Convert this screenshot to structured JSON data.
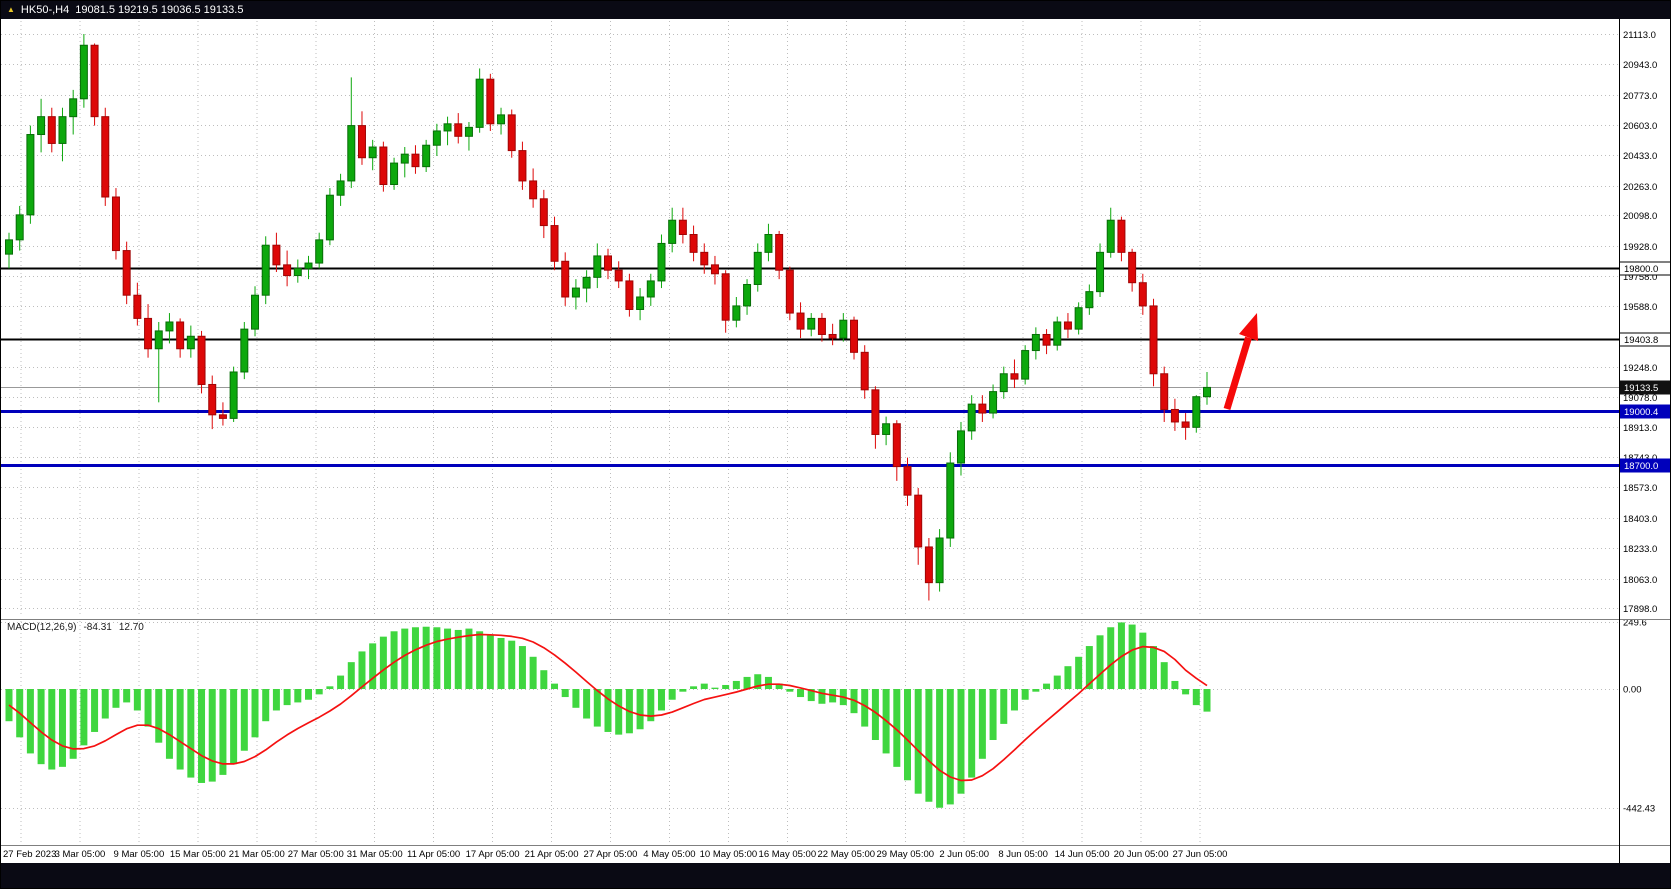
{
  "title_bar": {
    "symbol_period": "HK50-,H4",
    "ohlc": "19081.5 19219.5 19036.5 19133.5"
  },
  "colors": {
    "bull": "#0da80d",
    "bull_stroke": "#076d07",
    "bear": "#dd0808",
    "bear_stroke": "#a00505",
    "macd_bar": "#3fd63f",
    "macd_signal": "#f51111",
    "grid": "#bdbdbd",
    "hline_black": "#000000",
    "hline_blue": "#0000bb",
    "current_price_line": "#999999",
    "arrow": "#f50a0a",
    "titlebar_bg": "#0a0a14",
    "bottom_strip_bg": "#0a0a14",
    "axis_text": "#000000"
  },
  "chart_data": {
    "type": "candlestick",
    "symbol": "HK50-",
    "timeframe": "H4",
    "title": "HK50-,H4 19081.5 19219.5 19036.5 19133.5",
    "price_axis": {
      "min": 17898,
      "max": 21113,
      "ticks": [
        "21113.0",
        "20943.0",
        "20773.0",
        "20603.0",
        "20433.0",
        "20263.0",
        "20098.0",
        "19928.0",
        "19758.0",
        "19588.0",
        "19248.0",
        "19078.0",
        "18913.0",
        "18743.0",
        "18573.0",
        "18403.0",
        "18233.0",
        "18063.0",
        "17898.0"
      ]
    },
    "x_labels": [
      "27 Feb 2023",
      "3 Mar 05:00",
      "9 Mar 05:00",
      "15 Mar 05:00",
      "21 Mar 05:00",
      "27 Mar 05:00",
      "31 Mar 05:00",
      "11 Apr 05:00",
      "17 Apr 05:00",
      "21 Apr 05:00",
      "27 Apr 05:00",
      "4 May 05:00",
      "10 May 05:00",
      "16 May 05:00",
      "22 May 05:00",
      "29 May 05:00",
      "2 Jun 05:00",
      "8 Jun 05:00",
      "14 Jun 05:00",
      "20 Jun 05:00",
      "27 Jun 05:00"
    ],
    "hlines": [
      {
        "value": 19800.0,
        "label": "19800.0",
        "color": "#000000",
        "thickness": 2,
        "badge_bg": "#ffffff",
        "badge_fg": "#000000",
        "badge_border": "#000000"
      },
      {
        "value": 19403.8,
        "label": "19403.8",
        "color": "#000000",
        "thickness": 2,
        "badge_bg": "#ffffff",
        "badge_fg": "#000000",
        "badge_border": "#000000"
      },
      {
        "value": 19000.4,
        "label": "19000.4",
        "color": "#0000bb",
        "thickness": 3,
        "badge_bg": "#0000bb",
        "badge_fg": "#ffffff",
        "badge_border": "#0000bb"
      },
      {
        "value": 18700.0,
        "label": "18700.0",
        "color": "#0000bb",
        "thickness": 3,
        "badge_bg": "#0000bb",
        "badge_fg": "#ffffff",
        "badge_border": "#0000bb"
      }
    ],
    "current_price": {
      "value": 19133.5,
      "label": "19133.5",
      "badge_bg": "#111111",
      "badge_fg": "#ffffff"
    },
    "candles": [
      [
        19880,
        20000,
        19800,
        19960
      ],
      [
        19960,
        20150,
        19900,
        20100
      ],
      [
        20100,
        20600,
        20050,
        20550
      ],
      [
        20550,
        20750,
        20450,
        20650
      ],
      [
        20650,
        20700,
        20450,
        20500
      ],
      [
        20500,
        20700,
        20400,
        20650
      ],
      [
        20650,
        20800,
        20550,
        20750
      ],
      [
        20750,
        21113,
        20700,
        21050
      ],
      [
        21050,
        21060,
        20600,
        20650
      ],
      [
        20650,
        20700,
        20150,
        20200
      ],
      [
        20200,
        20250,
        19850,
        19900
      ],
      [
        19900,
        19950,
        19600,
        19650
      ],
      [
        19650,
        19720,
        19480,
        19520
      ],
      [
        19520,
        19600,
        19300,
        19350
      ],
      [
        19350,
        19500,
        19050,
        19450
      ],
      [
        19450,
        19550,
        19380,
        19500
      ],
      [
        19500,
        19520,
        19300,
        19350
      ],
      [
        19350,
        19480,
        19300,
        19420
      ],
      [
        19420,
        19450,
        19100,
        19150
      ],
      [
        19150,
        19200,
        18900,
        18980
      ],
      [
        18980,
        19050,
        18920,
        18960
      ],
      [
        18960,
        19250,
        18940,
        19220
      ],
      [
        19220,
        19500,
        19180,
        19460
      ],
      [
        19460,
        19700,
        19420,
        19650
      ],
      [
        19650,
        19980,
        19600,
        19930
      ],
      [
        19930,
        20000,
        19780,
        19820
      ],
      [
        19820,
        19900,
        19700,
        19760
      ],
      [
        19760,
        19850,
        19720,
        19800
      ],
      [
        19800,
        19870,
        19740,
        19830
      ],
      [
        19830,
        20000,
        19800,
        19960
      ],
      [
        19960,
        20250,
        19930,
        20210
      ],
      [
        20210,
        20330,
        20150,
        20290
      ],
      [
        20290,
        20870,
        20250,
        20600
      ],
      [
        20600,
        20680,
        20380,
        20420
      ],
      [
        20420,
        20520,
        20350,
        20480
      ],
      [
        20480,
        20510,
        20230,
        20270
      ],
      [
        20270,
        20420,
        20240,
        20390
      ],
      [
        20390,
        20480,
        20310,
        20440
      ],
      [
        20440,
        20490,
        20330,
        20370
      ],
      [
        20370,
        20520,
        20340,
        20490
      ],
      [
        20490,
        20610,
        20430,
        20570
      ],
      [
        20570,
        20650,
        20490,
        20610
      ],
      [
        20610,
        20670,
        20500,
        20540
      ],
      [
        20540,
        20620,
        20460,
        20590
      ],
      [
        20590,
        20920,
        20560,
        20860
      ],
      [
        20860,
        20890,
        20570,
        20610
      ],
      [
        20610,
        20700,
        20550,
        20660
      ],
      [
        20660,
        20690,
        20420,
        20460
      ],
      [
        20460,
        20510,
        20240,
        20290
      ],
      [
        20290,
        20360,
        20140,
        20190
      ],
      [
        20190,
        20240,
        19970,
        20040
      ],
      [
        20040,
        20090,
        19790,
        19840
      ],
      [
        19840,
        19890,
        19590,
        19640
      ],
      [
        19640,
        19740,
        19570,
        19690
      ],
      [
        19690,
        19790,
        19610,
        19750
      ],
      [
        19750,
        19940,
        19690,
        19870
      ],
      [
        19870,
        19910,
        19740,
        19790
      ],
      [
        19790,
        19840,
        19690,
        19730
      ],
      [
        19730,
        19770,
        19530,
        19570
      ],
      [
        19570,
        19690,
        19510,
        19640
      ],
      [
        19640,
        19770,
        19590,
        19730
      ],
      [
        19730,
        19990,
        19690,
        19940
      ],
      [
        19940,
        20140,
        19890,
        20070
      ],
      [
        20070,
        20140,
        19940,
        19990
      ],
      [
        19990,
        20040,
        19840,
        19890
      ],
      [
        19890,
        19940,
        19770,
        19820
      ],
      [
        19820,
        19870,
        19710,
        19770
      ],
      [
        19770,
        19790,
        19440,
        19510
      ],
      [
        19510,
        19640,
        19470,
        19590
      ],
      [
        19590,
        19740,
        19540,
        19710
      ],
      [
        19710,
        19940,
        19670,
        19890
      ],
      [
        19890,
        20050,
        19840,
        19990
      ],
      [
        19990,
        20010,
        19740,
        19790
      ],
      [
        19790,
        19810,
        19510,
        19550
      ],
      [
        19550,
        19610,
        19410,
        19460
      ],
      [
        19460,
        19550,
        19420,
        19520
      ],
      [
        19520,
        19550,
        19390,
        19430
      ],
      [
        19430,
        19490,
        19370,
        19410
      ],
      [
        19410,
        19550,
        19390,
        19510
      ],
      [
        19510,
        19530,
        19290,
        19330
      ],
      [
        19330,
        19370,
        19070,
        19120
      ],
      [
        19120,
        19140,
        18790,
        18870
      ],
      [
        18870,
        18970,
        18810,
        18930
      ],
      [
        18930,
        18950,
        18610,
        18690
      ],
      [
        18690,
        18740,
        18470,
        18530
      ],
      [
        18530,
        18570,
        18140,
        18240
      ],
      [
        18240,
        18290,
        17940,
        18040
      ],
      [
        18040,
        18340,
        17990,
        18290
      ],
      [
        18290,
        18770,
        18240,
        18710
      ],
      [
        18710,
        18940,
        18640,
        18890
      ],
      [
        18890,
        19090,
        18840,
        19040
      ],
      [
        19040,
        19090,
        18940,
        18990
      ],
      [
        18990,
        19150,
        18960,
        19110
      ],
      [
        19110,
        19250,
        19070,
        19210
      ],
      [
        19210,
        19290,
        19130,
        19180
      ],
      [
        19180,
        19370,
        19150,
        19340
      ],
      [
        19340,
        19470,
        19290,
        19430
      ],
      [
        19430,
        19460,
        19320,
        19370
      ],
      [
        19370,
        19530,
        19340,
        19500
      ],
      [
        19500,
        19550,
        19410,
        19460
      ],
      [
        19460,
        19610,
        19430,
        19580
      ],
      [
        19580,
        19710,
        19540,
        19670
      ],
      [
        19670,
        19940,
        19640,
        19890
      ],
      [
        19890,
        20140,
        19860,
        20070
      ],
      [
        20070,
        20090,
        19840,
        19890
      ],
      [
        19890,
        19910,
        19670,
        19720
      ],
      [
        19720,
        19770,
        19540,
        19590
      ],
      [
        19590,
        19630,
        19140,
        19210
      ],
      [
        19210,
        19250,
        18940,
        19010
      ],
      [
        19010,
        19070,
        18890,
        18940
      ],
      [
        18940,
        18990,
        18840,
        18910
      ],
      [
        18910,
        19090,
        18880,
        19081.5
      ],
      [
        19081.5,
        19219.5,
        19036.5,
        19133.5
      ]
    ],
    "macd": {
      "label": "MACD(12,26,9)",
      "value": "-84.31",
      "signal_value": "12.70",
      "axis_ticks": [
        "249.6",
        "0.00",
        "-442.43"
      ],
      "axis_max": 249.6,
      "axis_min": -442.43,
      "histogram": [
        -120,
        -180,
        -240,
        -280,
        -300,
        -290,
        -260,
        -210,
        -160,
        -110,
        -70,
        -50,
        -80,
        -140,
        -200,
        -260,
        -300,
        -330,
        -350,
        -345,
        -320,
        -280,
        -230,
        -180,
        -120,
        -80,
        -60,
        -50,
        -40,
        -20,
        10,
        50,
        100,
        140,
        170,
        195,
        215,
        225,
        230,
        232,
        230,
        225,
        220,
        225,
        215,
        200,
        190,
        180,
        160,
        120,
        70,
        20,
        -30,
        -70,
        -110,
        -140,
        -160,
        -170,
        -165,
        -150,
        -120,
        -80,
        -40,
        -10,
        10,
        20,
        5,
        15,
        30,
        45,
        55,
        45,
        20,
        -10,
        -30,
        -45,
        -55,
        -50,
        -60,
        -90,
        -140,
        -190,
        -240,
        -290,
        -340,
        -390,
        -420,
        -442.4,
        -430,
        -390,
        -330,
        -260,
        -190,
        -130,
        -80,
        -40,
        -10,
        20,
        50,
        85,
        120,
        160,
        200,
        230,
        248,
        240,
        210,
        160,
        100,
        30,
        -20,
        -60,
        -84.31
      ],
      "signal": [
        -60,
        -90,
        -125,
        -160,
        -190,
        -212,
        -223,
        -222,
        -212,
        -193,
        -170,
        -148,
        -135,
        -135,
        -148,
        -170,
        -196,
        -222,
        -248,
        -268,
        -279,
        -279,
        -270,
        -252,
        -227,
        -198,
        -171,
        -147,
        -126,
        -105,
        -82,
        -56,
        -25,
        8,
        40,
        71,
        100,
        125,
        146,
        163,
        177,
        186,
        193,
        199,
        203,
        202,
        200,
        196,
        189,
        175,
        154,
        127,
        96,
        63,
        28,
        -6,
        -37,
        -63,
        -84,
        -97,
        -101,
        -97,
        -86,
        -70,
        -54,
        -39,
        -30,
        -21,
        -11,
        0,
        11,
        18,
        18,
        13,
        4,
        -6,
        -16,
        -23,
        -30,
        -42,
        -62,
        -87,
        -118,
        -152,
        -190,
        -230,
        -268,
        -303,
        -328,
        -341,
        -339,
        -323,
        -297,
        -263,
        -227,
        -189,
        -153,
        -119,
        -85,
        -51,
        -17,
        19,
        55,
        90,
        121,
        145,
        158,
        155,
        140,
        110,
        70,
        40,
        12.7
      ]
    },
    "annotation": {
      "type": "arrow-up-right",
      "color": "#f50a0a",
      "near_price": 19100,
      "points_to_price": 19400
    }
  }
}
